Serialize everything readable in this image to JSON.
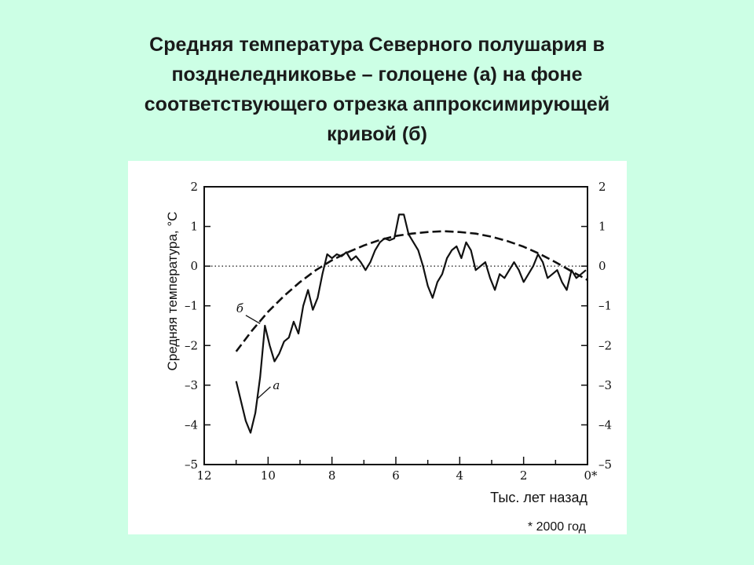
{
  "title": {
    "lines": [
      "Средняя температура Северного полушария в",
      "позднеледниковье – голоцене (а) на фоне",
      "соответствующего отрезка аппроксимирующей",
      "кривой (б)"
    ]
  },
  "chart_data": {
    "type": "line",
    "xlabel": "Тыс. лет назад",
    "ylabel": "Средняя температура, °С",
    "footnote": "* 2000 год",
    "x_axis_reversed": true,
    "xlim": [
      12,
      0
    ],
    "ylim": [
      -5,
      2
    ],
    "x_ticks": [
      {
        "value": 12,
        "label": "12"
      },
      {
        "value": 10,
        "label": "10"
      },
      {
        "value": 8,
        "label": "8"
      },
      {
        "value": 6,
        "label": "6"
      },
      {
        "value": 4,
        "label": "4"
      },
      {
        "value": 2,
        "label": "2"
      },
      {
        "value": 0,
        "label": "0*"
      }
    ],
    "y_ticks": [
      {
        "value": 2,
        "label": "2"
      },
      {
        "value": 1,
        "label": "1"
      },
      {
        "value": 0,
        "label": "0"
      },
      {
        "value": -1,
        "label": "–1"
      },
      {
        "value": -2,
        "label": "–2"
      },
      {
        "value": -3,
        "label": "–3"
      },
      {
        "value": -4,
        "label": "–4"
      },
      {
        "value": -5,
        "label": "–5"
      }
    ],
    "reference_line": {
      "y": 0,
      "style": "dotted"
    },
    "grid": false,
    "series": [
      {
        "name": "а",
        "style": "solid",
        "x": [
          11.0,
          10.85,
          10.7,
          10.55,
          10.4,
          10.25,
          10.1,
          9.95,
          9.8,
          9.65,
          9.5,
          9.35,
          9.2,
          9.05,
          8.9,
          8.75,
          8.6,
          8.45,
          8.3,
          8.15,
          8.0,
          7.85,
          7.7,
          7.55,
          7.4,
          7.25,
          7.1,
          6.95,
          6.8,
          6.65,
          6.5,
          6.35,
          6.2,
          6.05,
          5.9,
          5.75,
          5.6,
          5.45,
          5.3,
          5.15,
          5.0,
          4.85,
          4.7,
          4.55,
          4.4,
          4.25,
          4.1,
          3.95,
          3.8,
          3.65,
          3.5,
          3.35,
          3.2,
          3.05,
          2.9,
          2.75,
          2.6,
          2.45,
          2.3,
          2.15,
          2.0,
          1.85,
          1.7,
          1.55,
          1.4,
          1.25,
          1.1,
          0.95,
          0.8,
          0.65,
          0.5,
          0.35,
          0.2,
          0.05
        ],
        "y": [
          -2.9,
          -3.4,
          -3.9,
          -4.2,
          -3.7,
          -2.8,
          -1.5,
          -2.0,
          -2.4,
          -2.2,
          -1.9,
          -1.8,
          -1.4,
          -1.7,
          -1.0,
          -0.6,
          -1.1,
          -0.8,
          -0.2,
          0.3,
          0.2,
          0.3,
          0.25,
          0.35,
          0.15,
          0.25,
          0.1,
          -0.1,
          0.1,
          0.4,
          0.6,
          0.7,
          0.65,
          0.7,
          1.3,
          1.3,
          0.8,
          0.6,
          0.4,
          0.0,
          -0.5,
          -0.8,
          -0.4,
          -0.2,
          0.2,
          0.4,
          0.5,
          0.2,
          0.6,
          0.4,
          -0.1,
          0.0,
          0.1,
          -0.3,
          -0.6,
          -0.2,
          -0.3,
          -0.1,
          0.1,
          -0.1,
          -0.4,
          -0.2,
          0.0,
          0.3,
          0.1,
          -0.3,
          -0.2,
          -0.1,
          -0.4,
          -0.6,
          -0.1,
          -0.3,
          -0.2,
          -0.1
        ]
      },
      {
        "name": "б",
        "style": "dashed",
        "x": [
          11.0,
          10.5,
          10.0,
          9.5,
          9.0,
          8.5,
          8.0,
          7.5,
          7.0,
          6.5,
          6.0,
          5.5,
          5.0,
          4.5,
          4.0,
          3.5,
          3.0,
          2.5,
          2.0,
          1.5,
          1.0,
          0.5,
          0.0
        ],
        "y": [
          -2.15,
          -1.62,
          -1.15,
          -0.75,
          -0.4,
          -0.1,
          0.15,
          0.35,
          0.52,
          0.66,
          0.76,
          0.82,
          0.86,
          0.88,
          0.86,
          0.82,
          0.74,
          0.63,
          0.49,
          0.31,
          0.1,
          -0.13,
          -0.35
        ]
      }
    ]
  }
}
